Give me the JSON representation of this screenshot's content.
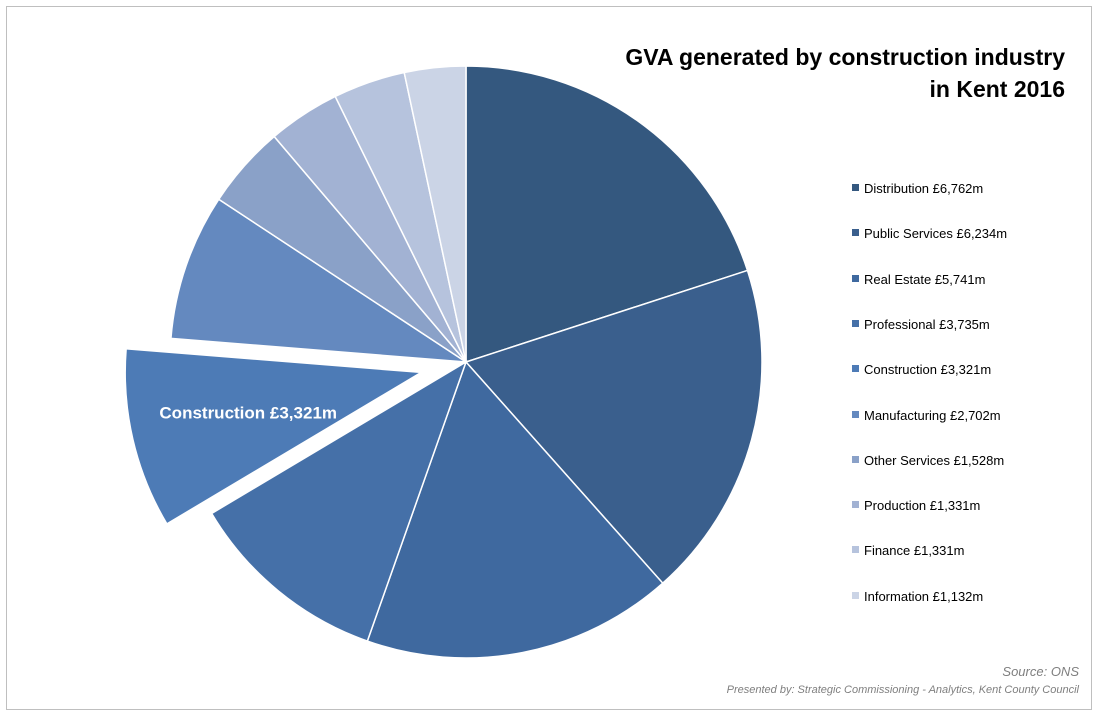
{
  "chart_data": {
    "type": "pie",
    "title": "GVA generated by construction industry",
    "title_line2": "in Kent 2016",
    "categories": [
      "Distribution",
      "Public Services",
      "Real Estate",
      "Professional",
      "Construction",
      "Manufacturing",
      "Other Services",
      "Production",
      "Finance",
      "Information"
    ],
    "values": [
      6762,
      6234,
      5741,
      3735,
      3321,
      2702,
      1528,
      1331,
      1331,
      1132
    ],
    "legend_labels": [
      "Distribution £6,762m",
      "Public Services £6,234m",
      "Real Estate £5,741m",
      "Professional £3,735m",
      "Construction £3,321m",
      "Manufacturing £2,702m",
      "Other Services £1,528m",
      "Production £1,331m",
      "Finance £1,331m",
      "Information £1,132m"
    ],
    "colors": [
      "#34587f",
      "#3a5f8d",
      "#3f699f",
      "#4570a8",
      "#4d7bb6",
      "#6489bf",
      "#8aa1c8",
      "#a2b2d3",
      "#b6c3dd",
      "#cbd4e6"
    ],
    "exploded": "Construction",
    "data_label": "Construction £3,321m",
    "legend_position": "right"
  },
  "footer": {
    "source": "Source: ONS",
    "presenter": "Presented by: Strategic Commissioning - Analytics, Kent County Council"
  }
}
